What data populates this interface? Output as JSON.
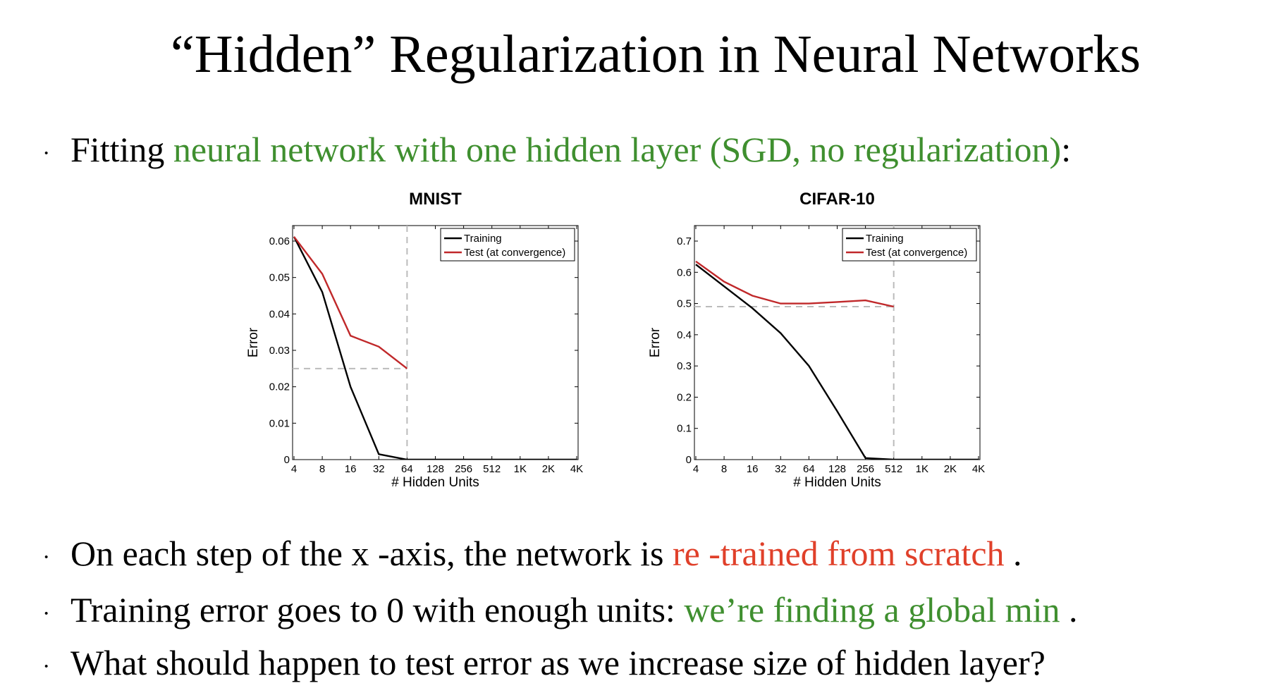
{
  "slide": {
    "title": "“Hidden” Regularization in Neural Networks",
    "intro": {
      "bullet": "·",
      "prefix": "Fitting ",
      "highlight": "neural network with one hidden layer (SGD, no regularization)",
      "suffix": ":"
    },
    "bullets": [
      {
        "bullet": "·",
        "prefix": "On each step of the x -axis, the network is ",
        "highlight": "re -trained from scratch",
        "suffix": " ."
      },
      {
        "bullet": "·",
        "prefix": "Training error goes to 0 with enough units: ",
        "highlight": "we’re finding a global min",
        "suffix": " ."
      },
      {
        "bullet": "·",
        "prefix": "What should happen to test error as we increase size of hidden layer?",
        "highlight": "",
        "suffix": ""
      }
    ],
    "colors": {
      "green": "#3f8f2f",
      "red": "#e0402a"
    }
  },
  "chart_data": [
    {
      "type": "line",
      "title": "MNIST",
      "xlabel": "# Hidden Units",
      "ylabel": "Error",
      "x": [
        "4",
        "8",
        "16",
        "32",
        "64",
        "128",
        "256",
        "512",
        "1K",
        "2K",
        "4K"
      ],
      "ylim": [
        0,
        0.06
      ],
      "yticks": [
        "0",
        "0.01",
        "0.02",
        "0.03",
        "0.04",
        "0.05",
        "0.06"
      ],
      "series": [
        {
          "name": "Training",
          "color": "#000000",
          "values": [
            0.065,
            0.046,
            0.02,
            0.0015,
            0.0,
            0.0,
            0.0,
            0.0,
            0.0,
            0.0,
            0.0
          ]
        },
        {
          "name": "Test (at convergence)",
          "color": "#c0282a",
          "values": [
            0.065,
            0.051,
            0.034,
            0.031,
            0.025,
            null,
            null,
            null,
            null,
            null,
            null
          ]
        }
      ],
      "reference_lines": {
        "horizontal": 0.025,
        "vertical": "64"
      },
      "legend": "top-right",
      "grid": false
    },
    {
      "type": "line",
      "title": "CIFAR-10",
      "xlabel": "# Hidden Units",
      "ylabel": "Error",
      "x": [
        "4",
        "8",
        "16",
        "32",
        "64",
        "128",
        "256",
        "512",
        "1K",
        "2K",
        "4K"
      ],
      "ylim": [
        0,
        0.7
      ],
      "yticks": [
        "0",
        "0.1",
        "0.2",
        "0.3",
        "0.4",
        "0.5",
        "0.6",
        "0.7"
      ],
      "series": [
        {
          "name": "Training",
          "color": "#000000",
          "values": [
            0.625,
            0.555,
            0.485,
            0.405,
            0.3,
            0.155,
            0.005,
            0.0,
            0.0,
            0.0,
            0.0
          ]
        },
        {
          "name": "Test (at convergence)",
          "color": "#c0282a",
          "values": [
            0.635,
            0.57,
            0.525,
            0.5,
            0.5,
            0.505,
            0.51,
            0.49,
            null,
            null,
            null
          ]
        }
      ],
      "reference_lines": {
        "horizontal": 0.49,
        "vertical": "512"
      },
      "legend": "top-right",
      "grid": false
    }
  ]
}
